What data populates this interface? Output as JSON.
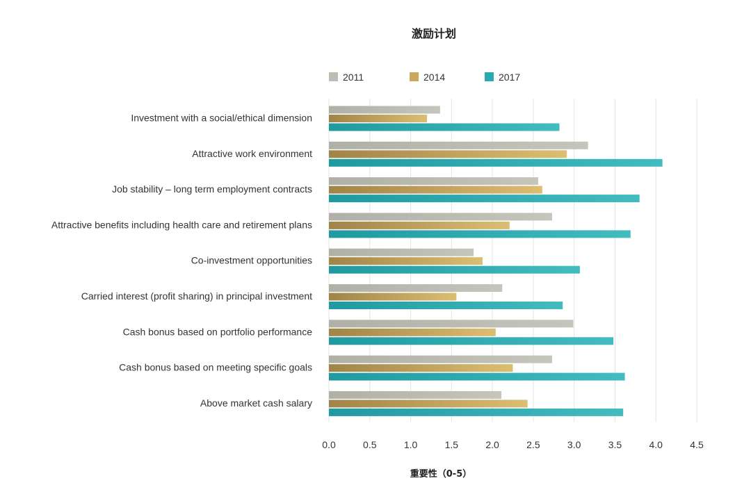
{
  "chart_data": {
    "type": "bar",
    "orientation": "horizontal",
    "title": "激励计划",
    "xlabel": "重要性（0-5）",
    "ylabel": "",
    "xlim": [
      0,
      4.5
    ],
    "x_ticks": [
      "0.0",
      "0.5",
      "1.0",
      "1.5",
      "2.0",
      "2.5",
      "3.0",
      "3.5",
      "4.0",
      "4.5"
    ],
    "grid": "vertical",
    "legend_position": "top",
    "categories": [
      "Investment with a social/ethical dimension",
      "Attractive work environment",
      "Job stability – long term employment contracts",
      "Attractive benefits including health care and retirement plans",
      "Co-investment opportunities",
      "Carried interest (profit sharing) in principal investment",
      "Cash bonus based on portfolio performance",
      "Cash bonus based on meeting specific goals",
      "Above market cash salary"
    ],
    "series": [
      {
        "name": "2011",
        "color": "#bebdb3",
        "values": [
          1.36,
          3.17,
          2.56,
          2.73,
          1.77,
          2.12,
          2.99,
          2.73,
          2.11
        ]
      },
      {
        "name": "2014",
        "color": "#c9a95c",
        "values": [
          1.2,
          2.91,
          2.61,
          2.21,
          1.88,
          1.56,
          2.04,
          2.25,
          2.43
        ]
      },
      {
        "name": "2017",
        "color": "#2aa9ae",
        "values": [
          2.82,
          4.08,
          3.8,
          3.69,
          3.07,
          2.86,
          3.48,
          3.62,
          3.6
        ]
      }
    ]
  }
}
